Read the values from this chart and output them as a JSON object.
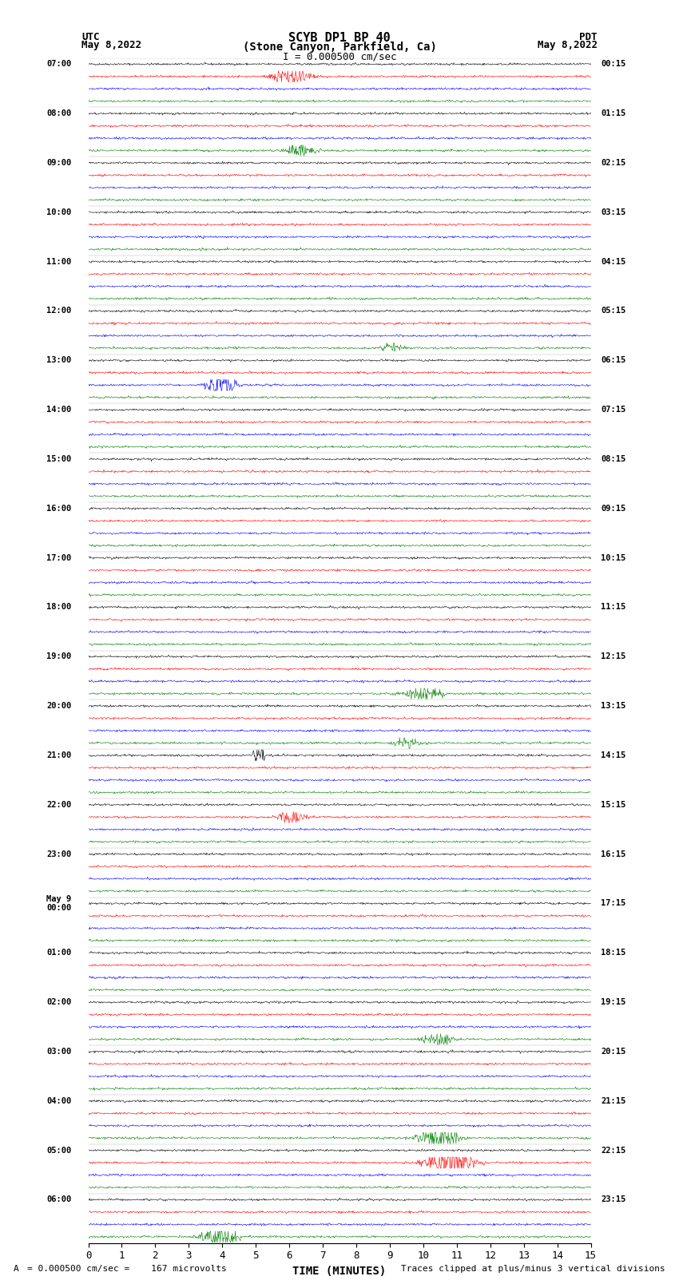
{
  "title_line1": "SCYB DP1 BP 40",
  "title_line2": "(Stone Canyon, Parkfield, Ca)",
  "scale_label": "I = 0.000500 cm/sec",
  "left_header": "UTC",
  "right_header": "PDT",
  "left_date": "May 8,2022",
  "right_date": "May 8,2022",
  "xlabel": "TIME (MINUTES)",
  "bottom_left": "= 0.000500 cm/sec =    167 microvolts",
  "bottom_right": "Traces clipped at plus/minus 3 vertical divisions",
  "bottom_left_prefix": "A",
  "x_min": 0,
  "x_max": 15,
  "x_ticks": [
    0,
    1,
    2,
    3,
    4,
    5,
    6,
    7,
    8,
    9,
    10,
    11,
    12,
    13,
    14,
    15
  ],
  "trace_colors": [
    "black",
    "red",
    "blue",
    "green"
  ],
  "background_color": "white",
  "utc_times": [
    "07:00",
    "",
    "",
    "",
    "08:00",
    "",
    "",
    "",
    "09:00",
    "",
    "",
    "",
    "10:00",
    "",
    "",
    "",
    "11:00",
    "",
    "",
    "",
    "12:00",
    "",
    "",
    "",
    "13:00",
    "",
    "",
    "",
    "14:00",
    "",
    "",
    "",
    "15:00",
    "",
    "",
    "",
    "16:00",
    "",
    "",
    "",
    "17:00",
    "",
    "",
    "",
    "18:00",
    "",
    "",
    "",
    "19:00",
    "",
    "",
    "",
    "20:00",
    "",
    "",
    "",
    "21:00",
    "",
    "",
    "",
    "22:00",
    "",
    "",
    "",
    "23:00",
    "",
    "",
    "",
    "May 9\n00:00",
    "",
    "",
    "",
    "01:00",
    "",
    "",
    "",
    "02:00",
    "",
    "",
    "",
    "03:00",
    "",
    "",
    "",
    "04:00",
    "",
    "",
    "",
    "05:00",
    "",
    "",
    "",
    "06:00",
    "",
    "",
    ""
  ],
  "pdt_times": [
    "00:15",
    "",
    "",
    "",
    "01:15",
    "",
    "",
    "",
    "02:15",
    "",
    "",
    "",
    "03:15",
    "",
    "",
    "",
    "04:15",
    "",
    "",
    "",
    "05:15",
    "",
    "",
    "",
    "06:15",
    "",
    "",
    "",
    "07:15",
    "",
    "",
    "",
    "08:15",
    "",
    "",
    "",
    "09:15",
    "",
    "",
    "",
    "10:15",
    "",
    "",
    "",
    "11:15",
    "",
    "",
    "",
    "12:15",
    "",
    "",
    "",
    "13:15",
    "",
    "",
    "",
    "14:15",
    "",
    "",
    "",
    "15:15",
    "",
    "",
    "",
    "16:15",
    "",
    "",
    "",
    "17:15",
    "",
    "",
    "",
    "18:15",
    "",
    "",
    "",
    "19:15",
    "",
    "",
    "",
    "20:15",
    "",
    "",
    "",
    "21:15",
    "",
    "",
    "",
    "22:15",
    "",
    "",
    "",
    "23:15",
    "",
    "",
    ""
  ],
  "noise_amplitude": 0.28,
  "clip_level": 3.0,
  "seed": 42
}
